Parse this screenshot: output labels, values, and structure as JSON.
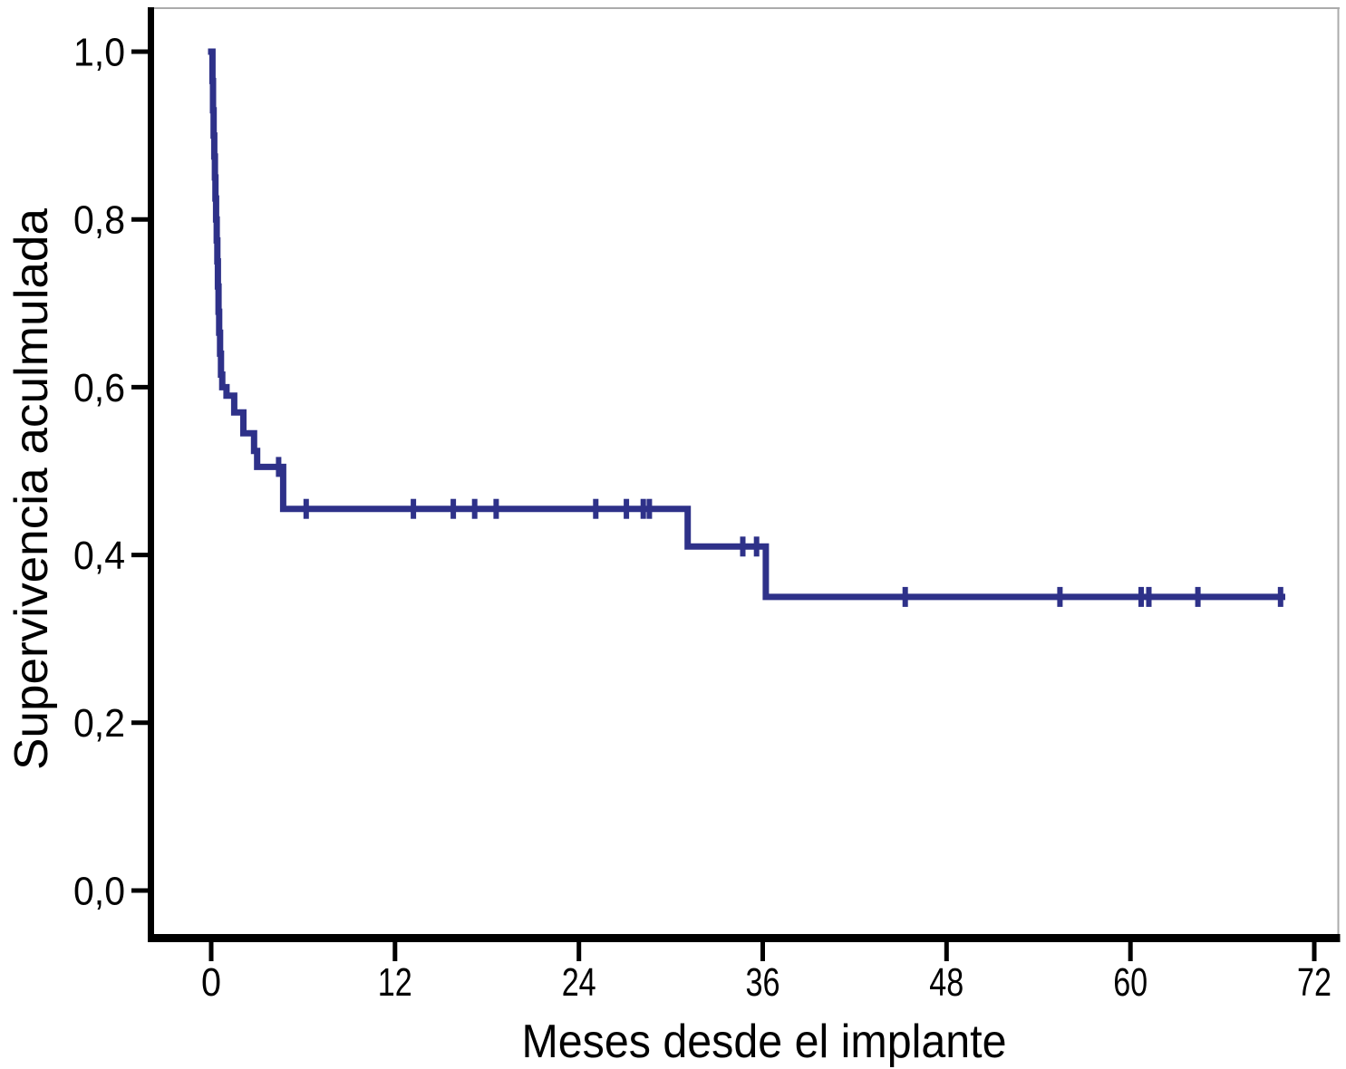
{
  "chart_data": {
    "type": "line",
    "chart_kind": "kaplan_meier_step_curve",
    "title": "",
    "xlabel": "Meses desde el implante",
    "ylabel": "Supervivencia aculmulada",
    "xlim": [
      0,
      72
    ],
    "ylim": [
      0.0,
      1.0
    ],
    "grid": false,
    "legend_position": "none",
    "curve_color": "#2e3189",
    "axis_color": "#000000",
    "frame_color": "#ababab",
    "x_ticks": [
      {
        "value": 0,
        "label": "0"
      },
      {
        "value": 12,
        "label": "12"
      },
      {
        "value": 24,
        "label": "24"
      },
      {
        "value": 36,
        "label": "36"
      },
      {
        "value": 48,
        "label": "48"
      },
      {
        "value": 60,
        "label": "60"
      },
      {
        "value": 72,
        "label": "72"
      }
    ],
    "y_ticks": [
      {
        "value": 1.0,
        "label": "1,0"
      },
      {
        "value": 0.8,
        "label": "0,8"
      },
      {
        "value": 0.6,
        "label": "0,6"
      },
      {
        "value": 0.4,
        "label": "0,4"
      },
      {
        "value": 0.2,
        "label": "0,2"
      },
      {
        "value": 0.0,
        "label": "0,0"
      }
    ],
    "series": [
      {
        "name": "supervivencia-acumulada",
        "steps": [
          [
            0.0,
            1.0
          ],
          [
            0.08,
            0.965
          ],
          [
            0.12,
            0.93
          ],
          [
            0.16,
            0.9
          ],
          [
            0.2,
            0.875
          ],
          [
            0.24,
            0.85
          ],
          [
            0.28,
            0.825
          ],
          [
            0.32,
            0.8
          ],
          [
            0.36,
            0.775
          ],
          [
            0.4,
            0.75
          ],
          [
            0.44,
            0.72
          ],
          [
            0.48,
            0.69
          ],
          [
            0.52,
            0.665
          ],
          [
            0.58,
            0.64
          ],
          [
            0.64,
            0.615
          ],
          [
            0.72,
            0.6
          ],
          [
            1.0,
            0.59
          ],
          [
            1.5,
            0.57
          ],
          [
            2.1,
            0.545
          ],
          [
            2.8,
            0.524
          ],
          [
            3.0,
            0.505
          ],
          [
            4.7,
            0.455
          ],
          [
            31.1,
            0.41
          ],
          [
            36.2,
            0.35
          ]
        ],
        "end_time": 69.9,
        "censored_points": [
          [
            4.4,
            0.505
          ],
          [
            6.2,
            0.455
          ],
          [
            13.2,
            0.455
          ],
          [
            15.8,
            0.455
          ],
          [
            17.2,
            0.455
          ],
          [
            18.6,
            0.455
          ],
          [
            25.1,
            0.455
          ],
          [
            27.1,
            0.455
          ],
          [
            28.2,
            0.455
          ],
          [
            28.6,
            0.455
          ],
          [
            34.7,
            0.41
          ],
          [
            35.6,
            0.41
          ],
          [
            45.3,
            0.35
          ],
          [
            55.4,
            0.35
          ],
          [
            60.7,
            0.35
          ],
          [
            61.2,
            0.35
          ],
          [
            64.4,
            0.35
          ],
          [
            69.8,
            0.35
          ]
        ]
      }
    ]
  }
}
